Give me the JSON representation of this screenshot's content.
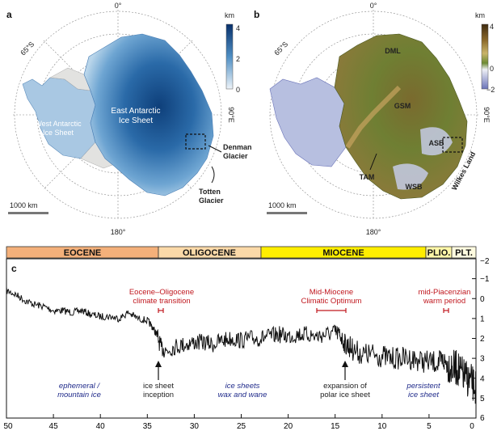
{
  "panel_a": {
    "label": "a",
    "lon_top": "0°",
    "lon_bottom": "180°",
    "lon_right": "90°E",
    "lon_left": "90°W",
    "lat_label": "65°S",
    "scale_bar": "1000 km",
    "colorbar_unit": "km",
    "colorbar_ticks": [
      "4",
      "2",
      "0"
    ],
    "east_label_line1": "East Antarctic",
    "east_label_line2": "Ice Sheet",
    "west_label_line1": "West Antarctic",
    "west_label_line2": "Ice Sheet",
    "denman_line1": "Denman",
    "denman_line2": "Glacier",
    "totten_line1": "Totten",
    "totten_line2": "Glacier"
  },
  "panel_b": {
    "label": "b",
    "lon_top": "0°",
    "lon_bottom": "180°",
    "lon_right": "90°E",
    "lat_label": "65°S",
    "scale_bar": "1000 km",
    "colorbar_unit": "km",
    "colorbar_ticks": [
      "4",
      "0",
      "−2"
    ],
    "dml": "DML",
    "gsm": "GSM",
    "asb": "ASB",
    "tam": "TAM",
    "wsb": "WSB",
    "wilkes": "Wilkes Land"
  },
  "panel_c": {
    "label": "c",
    "eras": [
      "EOCENE",
      "OLIGOCENE",
      "MIOCENE",
      "PLIO.",
      "PLT."
    ],
    "eot_line1": "Eocene–Oligocene",
    "eot_line2": "climate transition",
    "mmco_line1": "Mid-Miocene",
    "mmco_line2": "Climatic Optimum",
    "mpwp_line1": "mid-Piacenzian",
    "mpwp_line2": "warm period",
    "inception_line1": "ice sheet",
    "inception_line2": "inception",
    "expansion_line1": "expansion of",
    "expansion_line2": "polar ice sheet",
    "phase1_line1": "ephemeral /",
    "phase1_line2": "mountain ice",
    "phase2_line1": "ice sheets",
    "phase2_line2": "wax and wane",
    "phase3_line1": "persistent",
    "phase3_line2": "ice sheet"
  },
  "chart_data": {
    "type": "line",
    "title": "",
    "xlabel": "",
    "ylabel": "",
    "xlim": [
      50,
      0
    ],
    "ylim": [
      6,
      -2
    ],
    "x_ticks": [
      "50",
      "45",
      "40",
      "35",
      "30",
      "25",
      "20",
      "15",
      "10",
      "5",
      "0"
    ],
    "y_ticks": [
      "−2",
      "−1",
      "0",
      "1",
      "2",
      "3",
      "4",
      "5",
      "6"
    ],
    "series": [
      {
        "x": [
          50,
          49,
          48,
          47,
          46,
          45,
          44,
          43,
          42,
          41,
          40,
          39,
          38,
          37,
          36,
          35,
          34.5,
          34,
          33.5,
          33,
          32,
          31,
          30,
          29,
          28,
          27,
          26,
          25,
          24,
          23,
          22,
          21,
          20,
          19,
          18,
          17,
          16,
          15,
          14.5,
          14,
          13.5,
          13,
          12,
          11,
          10,
          9,
          8,
          7,
          6,
          5,
          4,
          3.5,
          3,
          2.5,
          2,
          1.5,
          1,
          0.5,
          0
        ],
        "y": [
          -0.4,
          -0.2,
          0.1,
          0.3,
          0.4,
          0.6,
          0.6,
          0.7,
          0.6,
          0.8,
          0.9,
          0.9,
          1.0,
          0.7,
          1.0,
          1.1,
          1.4,
          1.8,
          2.5,
          2.6,
          2.4,
          2.3,
          2.2,
          2.2,
          2.3,
          2.1,
          2.0,
          2.1,
          2.0,
          2.0,
          1.9,
          1.8,
          1.9,
          1.8,
          1.8,
          1.9,
          1.8,
          1.7,
          1.8,
          2.3,
          2.4,
          2.6,
          2.8,
          2.8,
          2.9,
          3.0,
          3.0,
          3.0,
          3.1,
          3.2,
          3.2,
          3.1,
          3.3,
          3.5,
          3.5,
          3.8,
          4.0,
          4.2,
          4.5
        ]
      }
    ]
  }
}
